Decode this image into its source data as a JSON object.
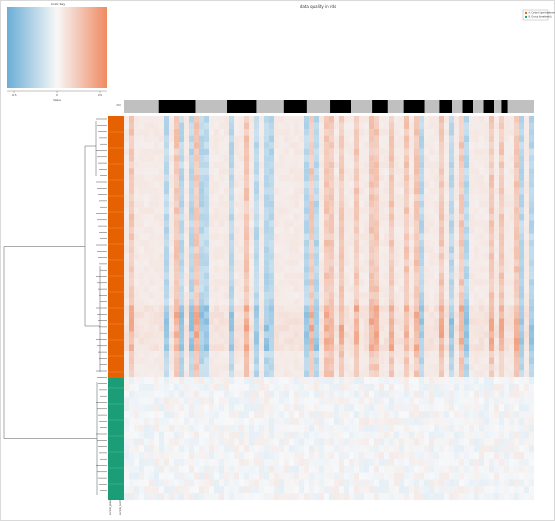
{
  "chart_data": {
    "type": "heatmap",
    "title": "data quality in rds",
    "color_key": {
      "title": "Color Key",
      "xlabel": "Value",
      "ticks": [
        "-0.5",
        "0",
        "0.5"
      ],
      "low_color": "#6baed6",
      "mid_color": "#f7f7f7",
      "high_color": "#ef8a62"
    },
    "legend": {
      "entries": [
        {
          "label": "A: Control (pre-treatment)",
          "color": "#e66101"
        },
        {
          "label": "B: Group (treatment)",
          "color": "#1b9e77"
        }
      ],
      "placement": "top-right"
    },
    "column_annotation": {
      "label": "Chr",
      "pattern": [
        0,
        1,
        0,
        1,
        0,
        1,
        0,
        1,
        0,
        1,
        0,
        1,
        0,
        1,
        0,
        1,
        0,
        1,
        0,
        1,
        0
      ],
      "colors": {
        "0": "#c0c0c0",
        "1": "#000000"
      }
    },
    "row_groups": [
      {
        "label": "Control",
        "color": "#e66101",
        "fraction": 0.68
      },
      {
        "label": "Treatment",
        "color": "#1b9e77",
        "fraction": 0.32
      }
    ],
    "row_side_labels": [
      "sample_group",
      "sample_batch"
    ],
    "value_range": [
      -0.5,
      0.5
    ],
    "dendrogram": "rows",
    "grid": false
  }
}
